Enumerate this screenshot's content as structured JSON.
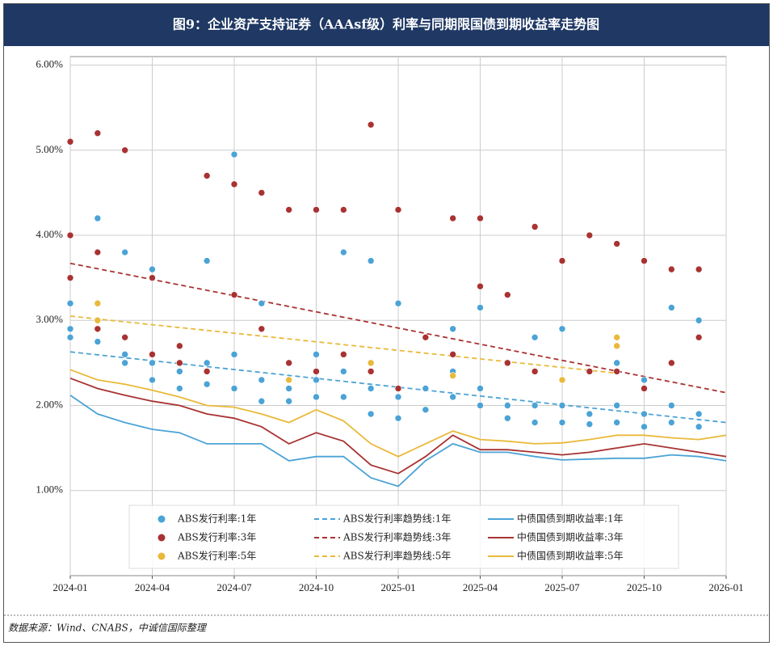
{
  "chart_data": {
    "type": "scatter",
    "title": "图9：企业资产支持证券（AAAsf级）利率与同期限国债到期收益率走势图",
    "source": "数据来源：Wind、CNABS，中诚信国际整理",
    "xlim": [
      "2024-01",
      "2026-01"
    ],
    "xticks": [
      "2024-01",
      "2024-04",
      "2024-07",
      "2024-10",
      "2025-01",
      "2025-04",
      "2025-07",
      "2025-10",
      "2026-01"
    ],
    "ylim": [
      0,
      6.1
    ],
    "yticks": [
      {
        "value": 1,
        "label": "1.00%"
      },
      {
        "value": 2,
        "label": "2.00%"
      },
      {
        "value": 3,
        "label": "3.00%"
      },
      {
        "value": 4,
        "label": "4.00%"
      },
      {
        "value": 5,
        "label": "5.00%"
      },
      {
        "value": 6,
        "label": "6.00%"
      }
    ],
    "grid": true,
    "series": [
      {
        "name": "ABS发行利率:1年",
        "type": "scatter",
        "color": "#4ba3d6",
        "x": [
          "2024-01",
          "2024-01",
          "2024-01",
          "2024-02",
          "2024-02",
          "2024-02",
          "2024-03",
          "2024-03",
          "2024-03",
          "2024-04",
          "2024-04",
          "2024-04",
          "2024-05",
          "2024-05",
          "2024-05",
          "2024-06",
          "2024-06",
          "2024-06",
          "2024-07",
          "2024-07",
          "2024-07",
          "2024-08",
          "2024-08",
          "2024-08",
          "2024-09",
          "2024-09",
          "2024-09",
          "2024-10",
          "2024-10",
          "2024-10",
          "2024-11",
          "2024-11",
          "2024-11",
          "2024-12",
          "2024-12",
          "2024-12",
          "2025-01",
          "2025-01",
          "2025-01",
          "2025-02",
          "2025-02",
          "2025-02",
          "2025-03",
          "2025-03",
          "2025-03",
          "2025-04",
          "2025-04",
          "2025-04",
          "2025-05",
          "2025-05",
          "2025-05",
          "2025-06",
          "2025-06",
          "2025-06",
          "2025-07",
          "2025-07",
          "2025-07",
          "2025-08",
          "2025-08",
          "2025-08",
          "2025-09",
          "2025-09",
          "2025-09",
          "2025-10",
          "2025-10",
          "2025-10",
          "2025-11",
          "2025-11",
          "2025-11",
          "2025-12",
          "2025-12",
          "2025-12"
        ],
        "values": [
          3.2,
          2.9,
          2.8,
          4.2,
          3.0,
          2.75,
          3.8,
          2.6,
          2.5,
          3.6,
          2.5,
          2.3,
          2.7,
          2.4,
          2.2,
          3.7,
          2.5,
          2.25,
          4.95,
          2.6,
          2.2,
          3.2,
          2.3,
          2.05,
          2.5,
          2.2,
          2.05,
          2.6,
          2.3,
          2.1,
          3.8,
          2.4,
          2.1,
          3.7,
          2.2,
          1.9,
          3.2,
          2.1,
          1.85,
          2.8,
          2.2,
          1.95,
          2.9,
          2.4,
          2.1,
          3.15,
          2.2,
          2.0,
          2.5,
          2.0,
          1.85,
          2.8,
          2.0,
          1.8,
          2.9,
          2.0,
          1.8,
          2.4,
          1.9,
          1.78,
          2.5,
          2.0,
          1.8,
          2.3,
          1.9,
          1.75,
          3.15,
          2.0,
          1.8,
          3.0,
          1.9,
          1.75
        ]
      },
      {
        "name": "ABS发行利率:3年",
        "type": "scatter",
        "color": "#a93232",
        "x": [
          "2024-01",
          "2024-01",
          "2024-01",
          "2024-02",
          "2024-02",
          "2024-02",
          "2024-03",
          "2024-03",
          "2024-04",
          "2024-04",
          "2024-05",
          "2024-05",
          "2024-06",
          "2024-06",
          "2024-07",
          "2024-07",
          "2024-08",
          "2024-08",
          "2024-09",
          "2024-09",
          "2024-10",
          "2024-10",
          "2024-11",
          "2024-11",
          "2024-12",
          "2024-12",
          "2025-01",
          "2025-01",
          "2025-02",
          "2025-03",
          "2025-03",
          "2025-04",
          "2025-04",
          "2025-05",
          "2025-05",
          "2025-06",
          "2025-06",
          "2025-07",
          "2025-07",
          "2025-08",
          "2025-08",
          "2025-09",
          "2025-09",
          "2025-10",
          "2025-10",
          "2025-11",
          "2025-11",
          "2025-12",
          "2025-12"
        ],
        "values": [
          5.1,
          4.0,
          3.5,
          5.2,
          3.8,
          2.9,
          5.0,
          2.8,
          3.5,
          2.6,
          2.7,
          2.5,
          4.7,
          2.4,
          4.6,
          3.3,
          4.5,
          2.9,
          4.3,
          2.5,
          4.3,
          2.4,
          4.3,
          2.6,
          5.3,
          2.4,
          4.3,
          2.2,
          2.8,
          4.2,
          2.6,
          4.2,
          3.4,
          3.3,
          2.5,
          4.1,
          2.4,
          3.7,
          2.3,
          4.0,
          2.4,
          3.9,
          2.4,
          3.7,
          2.2,
          3.6,
          2.5,
          3.6,
          2.8
        ]
      },
      {
        "name": "ABS发行利率:5年",
        "type": "scatter",
        "color": "#e9b93a",
        "x": [
          "2024-02",
          "2024-02",
          "2024-09",
          "2024-12",
          "2025-03",
          "2025-07",
          "2025-09",
          "2025-09"
        ],
        "values": [
          3.2,
          3.0,
          2.3,
          2.5,
          2.35,
          2.3,
          2.8,
          2.7
        ]
      },
      {
        "name": "ABS发行利率趋势线:1年",
        "type": "line",
        "dashed": true,
        "color": "#4ba3d6",
        "x": [
          "2024-01",
          "2026-01"
        ],
        "values": [
          2.63,
          1.8
        ]
      },
      {
        "name": "ABS发行利率趋势线:3年",
        "type": "line",
        "dashed": true,
        "color": "#a93232",
        "x": [
          "2024-01",
          "2026-01"
        ],
        "values": [
          3.67,
          2.15
        ]
      },
      {
        "name": "ABS发行利率趋势线:5年",
        "type": "line",
        "dashed": true,
        "color": "#e9b93a",
        "x": [
          "2024-01",
          "2025-09"
        ],
        "values": [
          3.05,
          2.38
        ]
      },
      {
        "name": "中债国债到期收益率:1年",
        "type": "line",
        "dashed": false,
        "color": "#4ba3d6",
        "x": [
          "2024-01",
          "2024-02",
          "2024-03",
          "2024-04",
          "2024-05",
          "2024-06",
          "2024-07",
          "2024-08",
          "2024-09",
          "2024-10",
          "2024-11",
          "2024-12",
          "2025-01",
          "2025-02",
          "2025-03",
          "2025-04",
          "2025-05",
          "2025-06",
          "2025-07",
          "2025-08",
          "2025-09",
          "2025-10",
          "2025-11",
          "2025-12",
          "2026-01"
        ],
        "values": [
          2.12,
          1.9,
          1.8,
          1.72,
          1.68,
          1.55,
          1.55,
          1.55,
          1.35,
          1.4,
          1.4,
          1.15,
          1.05,
          1.35,
          1.55,
          1.45,
          1.45,
          1.4,
          1.36,
          1.37,
          1.38,
          1.38,
          1.42,
          1.4,
          1.35
        ]
      },
      {
        "name": "中债国债到期收益率:3年",
        "type": "line",
        "dashed": false,
        "color": "#a93232",
        "x": [
          "2024-01",
          "2024-02",
          "2024-03",
          "2024-04",
          "2024-05",
          "2024-06",
          "2024-07",
          "2024-08",
          "2024-09",
          "2024-10",
          "2024-11",
          "2024-12",
          "2025-01",
          "2025-02",
          "2025-03",
          "2025-04",
          "2025-05",
          "2025-06",
          "2025-07",
          "2025-08",
          "2025-09",
          "2025-10",
          "2025-11",
          "2025-12",
          "2026-01"
        ],
        "values": [
          2.32,
          2.2,
          2.12,
          2.05,
          2.0,
          1.9,
          1.85,
          1.75,
          1.55,
          1.68,
          1.58,
          1.3,
          1.2,
          1.4,
          1.65,
          1.48,
          1.48,
          1.45,
          1.42,
          1.45,
          1.5,
          1.55,
          1.5,
          1.45,
          1.4
        ]
      },
      {
        "name": "中债国债到期收益率:5年",
        "type": "line",
        "dashed": false,
        "color": "#e9b93a",
        "x": [
          "2024-01",
          "2024-02",
          "2024-03",
          "2024-04",
          "2024-05",
          "2024-06",
          "2024-07",
          "2024-08",
          "2024-09",
          "2024-10",
          "2024-11",
          "2024-12",
          "2025-01",
          "2025-02",
          "2025-03",
          "2025-04",
          "2025-05",
          "2025-06",
          "2025-07",
          "2025-08",
          "2025-09",
          "2025-10",
          "2025-11",
          "2025-12",
          "2026-01"
        ],
        "values": [
          2.42,
          2.3,
          2.25,
          2.18,
          2.1,
          2.0,
          1.98,
          1.9,
          1.8,
          1.95,
          1.82,
          1.55,
          1.4,
          1.55,
          1.7,
          1.6,
          1.58,
          1.55,
          1.56,
          1.6,
          1.65,
          1.65,
          1.62,
          1.6,
          1.65
        ]
      }
    ]
  }
}
